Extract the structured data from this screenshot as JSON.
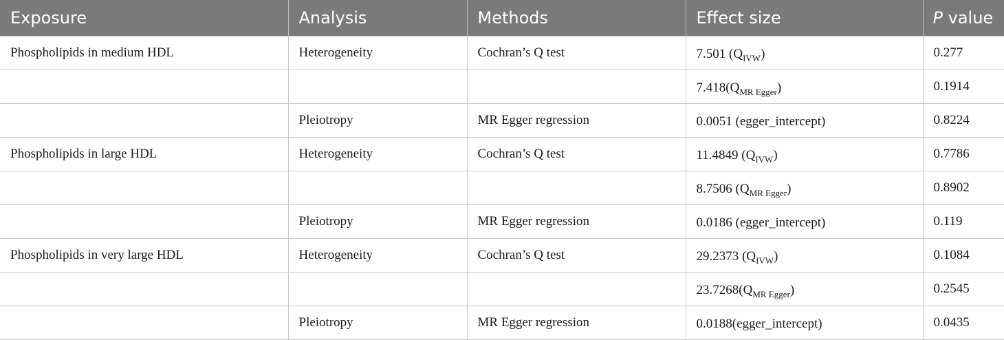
{
  "header": {
    "exposure": "Exposure",
    "analysis": "Analysis",
    "methods": "Methods",
    "effect_size": "Effect size",
    "p_italic": "P",
    "p_rest": " value"
  },
  "rows": [
    {
      "exposure": "Phospholipids in medium HDL",
      "analysis": "Heterogeneity",
      "method": "Cochran’s Q test",
      "effect_pre": "7.501 (Q",
      "effect_sub": "IVW",
      "effect_post": ")",
      "p": "0.277"
    },
    {
      "exposure": "",
      "analysis": "",
      "method": "",
      "effect_pre": "7.418(Q",
      "effect_sub": "MR Egger",
      "effect_post": ")",
      "p": "0.1914"
    },
    {
      "exposure": "",
      "analysis": "Pleiotropy",
      "method": "MR Egger regression",
      "effect_pre": "0.0051 (egger_intercept)",
      "effect_sub": "",
      "effect_post": "",
      "p": "0.8224"
    },
    {
      "exposure": "Phospholipids in large HDL",
      "analysis": "Heterogeneity",
      "method": "Cochran’s Q test",
      "effect_pre": "11.4849 (Q",
      "effect_sub": "IVW",
      "effect_post": ")",
      "p": "0.7786"
    },
    {
      "exposure": "",
      "analysis": "",
      "method": "",
      "effect_pre": "8.7506 (Q",
      "effect_sub": "MR Egger",
      "effect_post": ")",
      "p": "0.8902"
    },
    {
      "exposure": "",
      "analysis": "Pleiotropy",
      "method": "MR Egger regression",
      "effect_pre": "0.0186 (egger_intercept)",
      "effect_sub": "",
      "effect_post": "",
      "p": "0.119"
    },
    {
      "exposure": "Phospholipids in very large HDL",
      "analysis": "Heterogeneity",
      "method": "Cochran’s Q test",
      "effect_pre": "29.2373 (Q",
      "effect_sub": "IVW",
      "effect_post": ")",
      "p": "0.1084"
    },
    {
      "exposure": "",
      "analysis": "",
      "method": "",
      "effect_pre": "23.7268(Q",
      "effect_sub": "MR Egger",
      "effect_post": ")",
      "p": "0.2545"
    },
    {
      "exposure": "",
      "analysis": "Pleiotropy",
      "method": "MR Egger regression",
      "effect_pre": "0.0188(egger_intercept)",
      "effect_sub": "",
      "effect_post": "",
      "p": "0.0435"
    }
  ]
}
